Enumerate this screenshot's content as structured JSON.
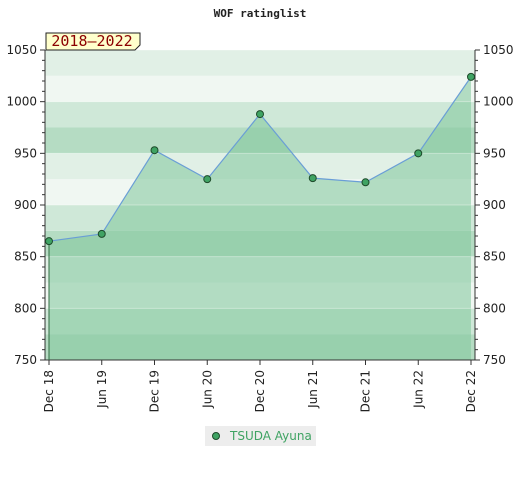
{
  "chart_data": {
    "type": "area",
    "title": "WOF ratinglist",
    "period_badge": "2018–2022",
    "categories": [
      "Dec 18",
      "Jun 19",
      "Dec 19",
      "Jun 20",
      "Dec 20",
      "Jun 21",
      "Dec 21",
      "Jun 22",
      "Dec 22"
    ],
    "series": [
      {
        "name": "TSUDA Ayuna",
        "values": [
          865,
          872,
          953,
          925,
          988,
          926,
          922,
          950,
          1024
        ]
      }
    ],
    "ylim": [
      750,
      1050
    ],
    "y_ticks": [
      750,
      800,
      850,
      900,
      950,
      1000,
      1050
    ],
    "y_axis_sides": [
      "left",
      "right"
    ],
    "xlabel": "",
    "ylabel": "",
    "grid": "horizontal bands",
    "legend_position": "bottom-center",
    "colors": {
      "fill": "#7fc79a",
      "line": "#6a9ed6",
      "marker": "#3fa363",
      "marker_edge": "#1d4a2a",
      "legend_text": "#3fa363",
      "badge_bg": "#ffffcc",
      "badge_text": "#8b0000"
    }
  }
}
